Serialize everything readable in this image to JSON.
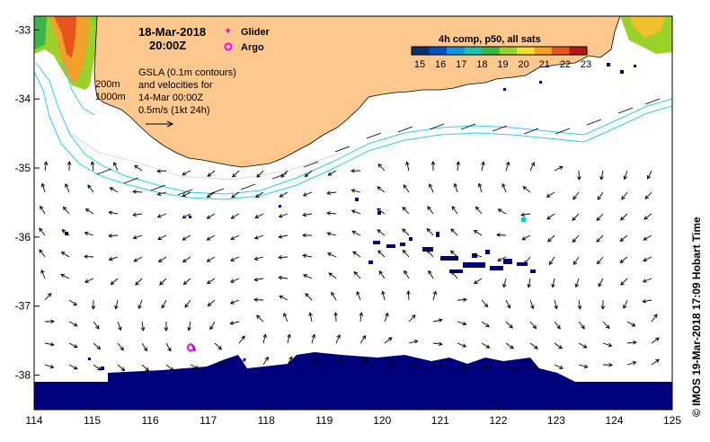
{
  "map": {
    "date_line": "18-Mar-2018",
    "time_line": "20:00Z",
    "description_lines": [
      "GSLA (0.1m contours)",
      "and velocities for",
      "14-Mar 00:00Z",
      "0.5m/s (1kt 24h)"
    ],
    "isobath_labels": [
      "200m",
      "1000m"
    ],
    "legend": {
      "glider_label": "Glider",
      "argo_label": "Argo",
      "glider_color": "#ff00ff",
      "argo_color": "#ff00ff"
    },
    "colorbar": {
      "title": "4h comp, p50, all sats",
      "tick_labels": [
        "15",
        "16",
        "17",
        "18",
        "19",
        "20",
        "21",
        "22",
        "23"
      ],
      "colors": [
        "#08306b",
        "#0050c8",
        "#0a96dc",
        "#17c3b2",
        "#39b54a",
        "#9bd12b",
        "#f0e12b",
        "#f7a21b",
        "#e8541e",
        "#b3170f"
      ]
    },
    "credit": "© IMOS 19-Mar-2018 17:09 Hobart Time",
    "x_ticks": [
      "114",
      "115",
      "116",
      "117",
      "118",
      "119",
      "120",
      "121",
      "122",
      "123",
      "124",
      "125"
    ],
    "y_ticks": [
      "-33",
      "-34",
      "-35",
      "-36",
      "-37",
      "-38"
    ],
    "land_color": "#fcc88e",
    "ocean_color": "#ffffff",
    "cloud_color": "#00007c",
    "isobath_color": "#29d3e7",
    "argo_float": {
      "lon": 116.7,
      "lat": -37.6
    }
  }
}
